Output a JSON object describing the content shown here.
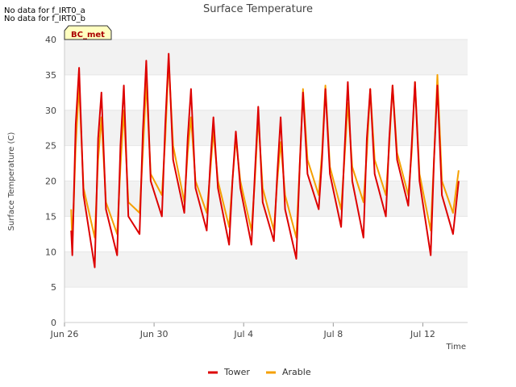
{
  "notices": [
    "No data for f_IRT0_a",
    "No data for f_IRT0_b"
  ],
  "badge": "BC_met",
  "chart_data": {
    "type": "line",
    "title": "Surface Temperature",
    "xlabel": "Time",
    "ylabel": "Surface Temperature (C)",
    "x_ticks": [
      "Jun 26",
      "Jun 30",
      "Jul 4",
      "Jul 8",
      "Jul 12"
    ],
    "y_ticks": [
      0,
      5,
      10,
      15,
      20,
      25,
      30,
      35,
      40
    ],
    "ylim": [
      0,
      40
    ],
    "xlim_days_from_jun26": [
      0,
      18
    ],
    "grid": true,
    "legend_position": "bottom-center",
    "x_day_offsets": [
      0.35,
      0.5,
      0.65,
      0.85,
      1.35,
      1.5,
      1.65,
      1.85,
      2.35,
      2.5,
      2.65,
      2.85,
      3.35,
      3.5,
      3.65,
      3.85,
      4.35,
      4.5,
      4.65,
      4.85,
      5.35,
      5.5,
      5.65,
      5.85,
      6.35,
      6.5,
      6.65,
      6.85,
      7.35,
      7.5,
      7.65,
      7.85,
      8.35,
      8.5,
      8.65,
      8.85,
      9.35,
      9.5,
      9.65,
      9.85,
      10.35,
      10.5,
      10.65,
      10.85,
      11.35,
      11.5,
      11.65,
      11.85,
      12.35,
      12.5,
      12.65,
      12.85,
      13.35,
      13.5,
      13.65,
      13.85,
      14.35,
      14.5,
      14.65,
      14.85,
      15.35,
      15.5,
      15.65,
      15.85,
      16.35,
      16.5,
      16.65,
      16.85,
      17.35
    ],
    "series": [
      {
        "name": "Tower",
        "color": "#dd0000",
        "start": [
          0.3,
          13
        ],
        "y": [
          9.5,
          28,
          36,
          18,
          7.8,
          26,
          32.5,
          16,
          9.5,
          25,
          33.5,
          15,
          12.5,
          27,
          37,
          20,
          15,
          28,
          38,
          23,
          15.5,
          26,
          33,
          19,
          13,
          22,
          29,
          19,
          11,
          20,
          27,
          19,
          11,
          21,
          30.5,
          17,
          11.5,
          21,
          29,
          16,
          9,
          22,
          32.5,
          21,
          16,
          23,
          33,
          21,
          13.5,
          24,
          34,
          20,
          12,
          26,
          33,
          21,
          15,
          26,
          33.5,
          23,
          16.5,
          25,
          34,
          20,
          9.5,
          23,
          33.5,
          18,
          12.5
        ],
        "end": [
          17.6,
          20
        ]
      },
      {
        "name": "Arable",
        "color": "#f5a000",
        "start": [
          0.3,
          16
        ],
        "y": [
          11,
          25,
          33.5,
          19,
          12,
          23,
          29,
          17,
          12.5,
          22,
          30,
          17,
          15.5,
          24,
          34,
          21,
          18,
          26,
          37,
          25,
          17,
          24,
          29,
          20,
          15.5,
          21,
          27,
          20,
          13.5,
          20,
          26,
          20,
          13,
          20,
          29,
          19,
          13,
          20,
          25.5,
          18,
          12,
          22,
          33,
          23,
          18,
          24,
          33.5,
          22,
          16,
          23,
          31,
          22,
          17,
          24,
          33,
          23,
          18,
          25,
          33.5,
          24,
          18,
          24,
          34,
          21,
          13,
          23,
          35,
          20,
          15.5
        ],
        "end": [
          17.6,
          21.5
        ]
      }
    ]
  }
}
